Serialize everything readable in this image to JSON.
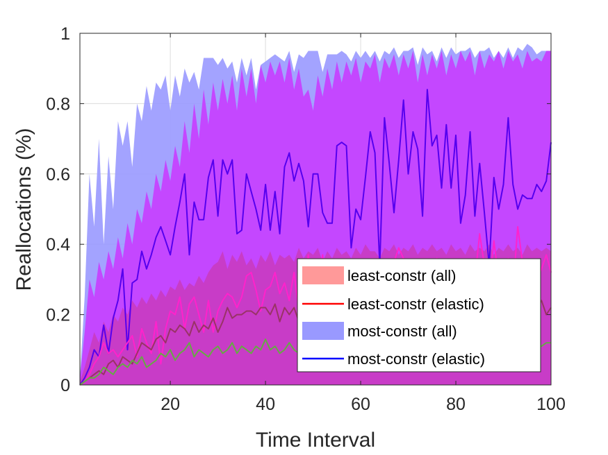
{
  "chart_data": {
    "type": "area",
    "xlabel": "Time Interval",
    "ylabel": "Reallocations (%)",
    "xlim": [
      1,
      100
    ],
    "ylim": [
      0,
      1
    ],
    "xticks": [
      20,
      40,
      60,
      80,
      100
    ],
    "xtick_labels": [
      "20",
      "40",
      "60",
      "80",
      "100"
    ],
    "yticks": [
      0,
      0.2,
      0.4,
      0.6,
      0.8,
      1
    ],
    "ytick_labels": [
      "0",
      "0.2",
      "0.4",
      "0.6",
      "0.8",
      "1"
    ],
    "grid": true,
    "legend_position": "bottom-right",
    "legend": [
      {
        "label": "least-constr (all)",
        "kind": "patch",
        "color": "#ff9999"
      },
      {
        "label": "least-constr (elastic)",
        "kind": "line",
        "color": "#ff0000"
      },
      {
        "label": "most-constr (all)",
        "kind": "patch",
        "color": "#9999ff"
      },
      {
        "label": "most-constr (elastic)",
        "kind": "line",
        "color": "#0000ff"
      }
    ],
    "x": [
      1,
      2,
      3,
      4,
      5,
      6,
      7,
      8,
      9,
      10,
      11,
      12,
      13,
      14,
      15,
      16,
      17,
      18,
      19,
      20,
      21,
      22,
      23,
      24,
      25,
      26,
      27,
      28,
      29,
      30,
      31,
      32,
      33,
      34,
      35,
      36,
      37,
      38,
      39,
      40,
      41,
      42,
      43,
      44,
      45,
      46,
      47,
      48,
      49,
      50,
      51,
      52,
      53,
      54,
      55,
      56,
      57,
      58,
      59,
      60,
      61,
      62,
      63,
      64,
      65,
      66,
      67,
      68,
      69,
      70,
      71,
      72,
      73,
      74,
      75,
      76,
      77,
      78,
      79,
      80,
      81,
      82,
      83,
      84,
      85,
      86,
      87,
      88,
      89,
      90,
      91,
      92,
      93,
      94,
      95,
      96,
      97,
      98,
      99,
      100
    ],
    "series": [
      {
        "name": "most-constr (all)",
        "kind": "band",
        "color": "#9999ff",
        "opacity": 0.9,
        "upper": [
          0.02,
          0.25,
          0.6,
          0.45,
          0.7,
          0.4,
          0.65,
          0.5,
          0.75,
          0.68,
          0.75,
          0.62,
          0.8,
          0.75,
          0.85,
          0.78,
          0.86,
          0.84,
          0.88,
          0.78,
          0.88,
          0.82,
          0.9,
          0.86,
          0.89,
          0.84,
          0.93,
          0.93,
          0.93,
          0.91,
          0.93,
          0.9,
          0.92,
          0.86,
          0.93,
          0.88,
          0.93,
          0.84,
          0.91,
          0.92,
          0.93,
          0.94,
          0.93,
          0.92,
          0.95,
          0.89,
          0.94,
          0.93,
          0.95,
          0.95,
          0.95,
          0.89,
          0.94,
          0.94,
          0.94,
          0.95,
          0.94,
          0.92,
          0.95,
          0.93,
          0.95,
          0.93,
          0.95,
          0.92,
          0.95,
          0.94,
          0.96,
          0.93,
          0.95,
          0.95,
          0.96,
          0.91,
          0.96,
          0.94,
          0.95,
          0.92,
          0.96,
          0.93,
          0.96,
          0.94,
          0.95,
          0.95,
          0.96,
          0.93,
          0.95,
          0.95,
          0.96,
          0.93,
          0.95,
          0.93,
          0.96,
          0.93,
          0.96,
          0.95,
          0.97,
          0.96,
          0.94,
          0.95,
          0.95,
          0.95
        ],
        "lower": [
          0,
          0,
          0,
          0,
          0,
          0,
          0,
          0,
          0,
          0,
          0,
          0,
          0,
          0,
          0,
          0,
          0,
          0,
          0,
          0,
          0,
          0,
          0,
          0,
          0,
          0,
          0,
          0,
          0,
          0,
          0,
          0,
          0,
          0,
          0,
          0,
          0,
          0,
          0,
          0,
          0,
          0,
          0,
          0,
          0,
          0,
          0,
          0,
          0,
          0,
          0,
          0,
          0,
          0,
          0,
          0,
          0,
          0,
          0,
          0,
          0,
          0,
          0,
          0,
          0,
          0,
          0,
          0,
          0,
          0,
          0,
          0,
          0,
          0,
          0,
          0,
          0,
          0,
          0,
          0,
          0,
          0,
          0,
          0,
          0,
          0,
          0,
          0,
          0,
          0,
          0,
          0,
          0,
          0,
          0,
          0,
          0,
          0,
          0,
          0
        ]
      },
      {
        "name": "least-constr (all)",
        "kind": "band",
        "color": "#cc33ff",
        "opacity": 0.82,
        "upper": [
          0.02,
          0.15,
          0.3,
          0.25,
          0.35,
          0.3,
          0.38,
          0.33,
          0.42,
          0.36,
          0.46,
          0.4,
          0.5,
          0.46,
          0.55,
          0.5,
          0.6,
          0.55,
          0.64,
          0.58,
          0.68,
          0.62,
          0.75,
          0.66,
          0.8,
          0.7,
          0.84,
          0.74,
          0.86,
          0.78,
          0.87,
          0.8,
          0.88,
          0.78,
          0.9,
          0.82,
          0.9,
          0.8,
          0.91,
          0.86,
          0.92,
          0.88,
          0.92,
          0.86,
          0.93,
          0.84,
          0.9,
          0.82,
          0.84,
          0.78,
          0.88,
          0.82,
          0.9,
          0.84,
          0.92,
          0.86,
          0.92,
          0.88,
          0.93,
          0.86,
          0.92,
          0.9,
          0.94,
          0.86,
          0.93,
          0.9,
          0.94,
          0.88,
          0.94,
          0.9,
          0.95,
          0.86,
          0.94,
          0.88,
          0.94,
          0.9,
          0.95,
          0.88,
          0.94,
          0.9,
          0.95,
          0.92,
          0.95,
          0.88,
          0.95,
          0.9,
          0.94,
          0.92,
          0.95,
          0.9,
          0.95,
          0.92,
          0.94,
          0.9,
          0.95,
          0.92,
          0.93,
          0.92,
          0.95,
          0.95
        ],
        "lower": [
          0,
          0,
          0,
          0,
          0,
          0,
          0,
          0,
          0,
          0,
          0,
          0,
          0,
          0,
          0,
          0,
          0,
          0,
          0,
          0,
          0,
          0,
          0,
          0,
          0,
          0,
          0,
          0,
          0,
          0,
          0,
          0,
          0,
          0,
          0,
          0,
          0,
          0,
          0,
          0,
          0,
          0,
          0,
          0,
          0,
          0,
          0,
          0,
          0,
          0,
          0,
          0,
          0,
          0,
          0,
          0,
          0,
          0,
          0,
          0,
          0,
          0,
          0,
          0,
          0,
          0,
          0,
          0,
          0,
          0,
          0,
          0,
          0,
          0,
          0,
          0,
          0,
          0,
          0,
          0,
          0,
          0,
          0,
          0,
          0,
          0,
          0,
          0,
          0,
          0,
          0,
          0,
          0,
          0,
          0,
          0,
          0,
          0,
          0,
          0
        ]
      },
      {
        "name": "inner band",
        "kind": "band",
        "color": "#cc3399",
        "opacity": 0.55,
        "upper": [
          0.01,
          0.05,
          0.1,
          0.15,
          0.12,
          0.18,
          0.15,
          0.2,
          0.18,
          0.22,
          0.2,
          0.24,
          0.22,
          0.25,
          0.23,
          0.26,
          0.24,
          0.27,
          0.25,
          0.28,
          0.27,
          0.3,
          0.27,
          0.29,
          0.28,
          0.31,
          0.29,
          0.32,
          0.34,
          0.35,
          0.38,
          0.33,
          0.37,
          0.35,
          0.38,
          0.34,
          0.36,
          0.33,
          0.37,
          0.35,
          0.38,
          0.34,
          0.37,
          0.36,
          0.37,
          0.35,
          0.39,
          0.36,
          0.38,
          0.37,
          0.39,
          0.35,
          0.38,
          0.36,
          0.39,
          0.37,
          0.38,
          0.36,
          0.39,
          0.37,
          0.4,
          0.38,
          0.38,
          0.36,
          0.39,
          0.38,
          0.4,
          0.37,
          0.39,
          0.38,
          0.4,
          0.37,
          0.39,
          0.38,
          0.4,
          0.38,
          0.39,
          0.37,
          0.4,
          0.38,
          0.39,
          0.37,
          0.4,
          0.38,
          0.39,
          0.38,
          0.4,
          0.37,
          0.39,
          0.38,
          0.4,
          0.38,
          0.39,
          0.37,
          0.4,
          0.38,
          0.39,
          0.38,
          0.39,
          0.38
        ],
        "lower": [
          0,
          0,
          0,
          0,
          0,
          0,
          0,
          0,
          0,
          0,
          0,
          0,
          0,
          0,
          0,
          0,
          0,
          0,
          0,
          0,
          0,
          0,
          0,
          0,
          0,
          0,
          0,
          0,
          0,
          0,
          0,
          0,
          0,
          0,
          0,
          0,
          0,
          0,
          0,
          0,
          0,
          0,
          0,
          0,
          0,
          0,
          0,
          0,
          0,
          0,
          0,
          0,
          0,
          0,
          0,
          0,
          0,
          0,
          0,
          0,
          0,
          0,
          0,
          0,
          0,
          0,
          0,
          0,
          0,
          0,
          0,
          0,
          0,
          0,
          0,
          0,
          0,
          0,
          0,
          0,
          0,
          0,
          0,
          0,
          0,
          0,
          0,
          0,
          0,
          0,
          0,
          0,
          0,
          0,
          0,
          0,
          0,
          0,
          0,
          0
        ]
      },
      {
        "name": "most-constr (elastic)",
        "kind": "line",
        "color": "#5500ee",
        "values": [
          0,
          0.02,
          0.05,
          0.1,
          0.08,
          0.17,
          0.09,
          0.19,
          0.24,
          0.33,
          0.1,
          0.29,
          0.3,
          0.38,
          0.33,
          0.37,
          0.42,
          0.45,
          0.41,
          0.37,
          0.45,
          0.52,
          0.6,
          0.37,
          0.52,
          0.47,
          0.47,
          0.59,
          0.64,
          0.48,
          0.64,
          0.6,
          0.64,
          0.43,
          0.44,
          0.6,
          0.55,
          0.5,
          0.44,
          0.57,
          0.44,
          0.55,
          0.43,
          0.62,
          0.66,
          0.58,
          0.63,
          0.58,
          0.45,
          0.6,
          0.6,
          0.49,
          0.46,
          0.46,
          0.68,
          0.69,
          0.68,
          0.39,
          0.5,
          0.47,
          0.59,
          0.72,
          0.66,
          0.34,
          0.76,
          0.63,
          0.49,
          0.64,
          0.81,
          0.6,
          0.72,
          0.67,
          0.48,
          0.84,
          0.68,
          0.71,
          0.56,
          0.74,
          0.56,
          0.71,
          0.46,
          0.54,
          0.72,
          0.48,
          0.63,
          0.49,
          0.34,
          0.59,
          0.5,
          0.57,
          0.76,
          0.57,
          0.5,
          0.54,
          0.53,
          0.53,
          0.57,
          0.55,
          0.58,
          0.69
        ]
      },
      {
        "name": "least-constr (elastic)",
        "kind": "line",
        "color": "#ff22cc",
        "values": [
          0,
          0.01,
          0.03,
          0.06,
          0.08,
          0.12,
          0.09,
          0.1,
          0.08,
          0.1,
          0.12,
          0.14,
          0.08,
          0.16,
          0.12,
          0.09,
          0.18,
          0.06,
          0.16,
          0.21,
          0.2,
          0.25,
          0.16,
          0.23,
          0.25,
          0.2,
          0.15,
          0.24,
          0.15,
          0.21,
          0.24,
          0.26,
          0.25,
          0.22,
          0.25,
          0.31,
          0.32,
          0.27,
          0.21,
          0.27,
          0.28,
          0.32,
          0.26,
          0.29,
          0.24,
          0.32,
          0.21,
          0.28,
          0.37,
          0.24,
          0.26,
          0.37,
          0.25,
          0.3,
          0.27,
          0.34,
          0.3,
          0.26,
          0.32,
          0.31,
          0.31,
          0.33,
          0.27,
          0.26,
          0.3,
          0.32,
          0.35,
          0.39,
          0.36,
          0.24,
          0.29,
          0.27,
          0.28,
          0.3,
          0.31,
          0.36,
          0.29,
          0.33,
          0.33,
          0.25,
          0.27,
          0.35,
          0.32,
          0.3,
          0.43,
          0.34,
          0.27,
          0.41,
          0.3,
          0.33,
          0.36,
          0.27,
          0.45,
          0.35,
          0.28,
          0.33,
          0.3,
          0.33,
          0.37,
          0.32
        ]
      },
      {
        "name": "least-constr (elastic) dark",
        "kind": "line",
        "color": "#993366",
        "values": [
          0,
          0.01,
          0.02,
          0.03,
          0.04,
          0.03,
          0.06,
          0.07,
          0.05,
          0.08,
          0.07,
          0.06,
          0.09,
          0.12,
          0.11,
          0.1,
          0.13,
          0.14,
          0.12,
          0.16,
          0.15,
          0.17,
          0.16,
          0.14,
          0.18,
          0.15,
          0.17,
          0.16,
          0.19,
          0.15,
          0.18,
          0.22,
          0.19,
          0.2,
          0.2,
          0.21,
          0.21,
          0.2,
          0.22,
          0.22,
          0.2,
          0.23,
          0.18,
          0.22,
          0.2,
          0.22,
          0.18,
          0.24,
          0.21,
          0.2,
          0.21,
          0.23,
          0.22,
          0.2,
          0.23,
          0.2,
          0.22,
          0.21,
          0.23,
          0.2,
          0.22,
          0.24,
          0.21,
          0.22,
          0.23,
          0.19,
          0.23,
          0.25,
          0.2,
          0.22,
          0.23,
          0.21,
          0.24,
          0.2,
          0.22,
          0.23,
          0.18,
          0.23,
          0.21,
          0.24,
          0.2,
          0.22,
          0.23,
          0.21,
          0.22,
          0.25,
          0.2,
          0.22,
          0.23,
          0.21,
          0.24,
          0.2,
          0.22,
          0.23,
          0.19,
          0.21,
          0.22,
          0.24,
          0.2,
          0.22
        ]
      },
      {
        "name": "green line",
        "kind": "line",
        "color": "#66aa44",
        "values": [
          0,
          0.01,
          0.02,
          0.02,
          0.03,
          0.05,
          0.04,
          0.03,
          0.05,
          0.06,
          0.05,
          0.07,
          0.06,
          0.08,
          0.05,
          0.06,
          0.07,
          0.09,
          0.08,
          0.1,
          0.07,
          0.09,
          0.1,
          0.12,
          0.08,
          0.1,
          0.09,
          0.08,
          0.1,
          0.11,
          0.09,
          0.1,
          0.12,
          0.09,
          0.11,
          0.1,
          0.09,
          0.11,
          0.1,
          0.13,
          0.1,
          0.11,
          0.09,
          0.1,
          0.12,
          0.1,
          0.09,
          0.11,
          0.1,
          0.12,
          0.1,
          0.11,
          0.09,
          0.1,
          0.12,
          0.11,
          0.1,
          0.09,
          0.11,
          0.1,
          0.12,
          0.09,
          0.11,
          0.1,
          0.12,
          0.1,
          0.09,
          0.11,
          0.1,
          0.12,
          0.1,
          0.11,
          0.09,
          0.1,
          0.12,
          0.11,
          0.1,
          0.09,
          0.11,
          0.1,
          0.12,
          0.1,
          0.09,
          0.11,
          0.1,
          0.12,
          0.1,
          0.11,
          0.09,
          0.1,
          0.12,
          0.11,
          0.1,
          0.09,
          0.11,
          0.1,
          0.12,
          0.11,
          0.12,
          0.12
        ]
      }
    ]
  }
}
